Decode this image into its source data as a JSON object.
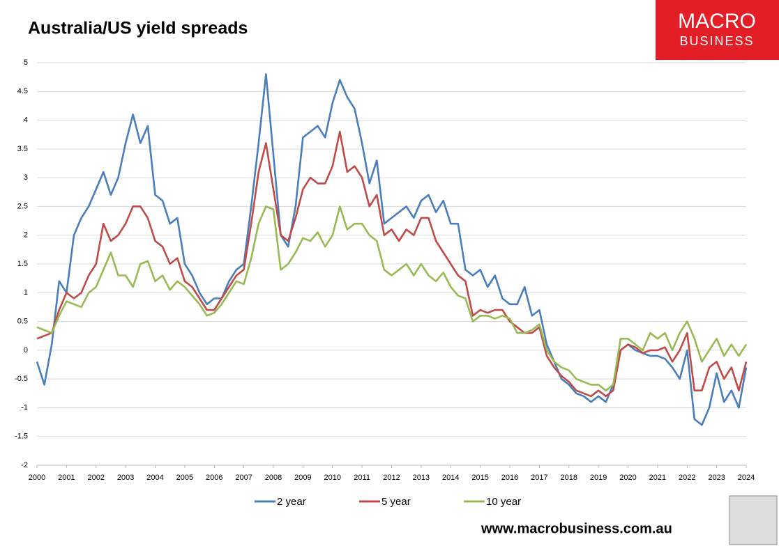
{
  "chart_data": {
    "type": "line",
    "title": "Australia/US yield spreads",
    "x": [
      2000,
      2000.25,
      2000.5,
      2000.75,
      2001,
      2001.25,
      2001.5,
      2001.75,
      2002,
      2002.25,
      2002.5,
      2002.75,
      2003,
      2003.25,
      2003.5,
      2003.75,
      2004,
      2004.25,
      2004.5,
      2004.75,
      2005,
      2005.25,
      2005.5,
      2005.75,
      2006,
      2006.25,
      2006.5,
      2006.75,
      2007,
      2007.25,
      2007.5,
      2007.75,
      2008,
      2008.25,
      2008.5,
      2008.75,
      2009,
      2009.25,
      2009.5,
      2009.75,
      2010,
      2010.25,
      2010.5,
      2010.75,
      2011,
      2011.25,
      2011.5,
      2011.75,
      2012,
      2012.25,
      2012.5,
      2012.75,
      2013,
      2013.25,
      2013.5,
      2013.75,
      2014,
      2014.25,
      2014.5,
      2014.75,
      2015,
      2015.25,
      2015.5,
      2015.75,
      2016,
      2016.25,
      2016.5,
      2016.75,
      2017,
      2017.25,
      2017.5,
      2017.75,
      2018,
      2018.25,
      2018.5,
      2018.75,
      2019,
      2019.25,
      2019.5,
      2019.75,
      2020,
      2020.25,
      2020.5,
      2020.75,
      2021,
      2021.25,
      2021.5,
      2021.75,
      2022,
      2022.25,
      2022.5,
      2022.75,
      2023,
      2023.25,
      2023.5,
      2023.75,
      2024
    ],
    "series": [
      {
        "name": "2 year",
        "color": "#4a7ebb",
        "values": [
          -0.2,
          -0.6,
          0.1,
          1.2,
          1.0,
          2.0,
          2.3,
          2.5,
          2.8,
          3.1,
          2.7,
          3.0,
          3.6,
          4.1,
          3.6,
          3.9,
          2.7,
          2.6,
          2.2,
          2.3,
          1.5,
          1.3,
          1.0,
          0.8,
          0.9,
          0.9,
          1.2,
          1.4,
          1.5,
          2.5,
          3.6,
          4.8,
          3.4,
          2.0,
          1.8,
          2.5,
          3.7,
          3.8,
          3.9,
          3.7,
          4.3,
          4.7,
          4.4,
          4.2,
          3.6,
          2.9,
          3.3,
          2.2,
          2.3,
          2.4,
          2.5,
          2.3,
          2.6,
          2.7,
          2.4,
          2.6,
          2.2,
          2.2,
          1.4,
          1.3,
          1.4,
          1.1,
          1.3,
          0.9,
          0.8,
          0.8,
          1.1,
          0.6,
          0.7,
          0.1,
          -0.2,
          -0.5,
          -0.6,
          -0.75,
          -0.8,
          -0.9,
          -0.8,
          -0.9,
          -0.6,
          0.0,
          0.1,
          0.0,
          -0.05,
          -0.1,
          -0.1,
          -0.15,
          -0.3,
          -0.5,
          0.0,
          -1.2,
          -1.3,
          -1.0,
          -0.4,
          -0.9,
          -0.7,
          -1.0,
          -0.3
        ]
      },
      {
        "name": "5 year",
        "color": "#be4b48",
        "values": [
          0.2,
          0.25,
          0.3,
          0.7,
          1.0,
          0.9,
          1.0,
          1.3,
          1.5,
          2.2,
          1.9,
          2.0,
          2.2,
          2.5,
          2.5,
          2.3,
          1.9,
          1.8,
          1.5,
          1.6,
          1.2,
          1.1,
          0.9,
          0.7,
          0.7,
          0.9,
          1.1,
          1.3,
          1.4,
          2.2,
          3.1,
          3.6,
          2.8,
          2.0,
          1.9,
          2.3,
          2.8,
          3.0,
          2.9,
          2.9,
          3.2,
          3.8,
          3.1,
          3.2,
          3.0,
          2.5,
          2.7,
          2.0,
          2.1,
          1.9,
          2.1,
          2.0,
          2.3,
          2.3,
          1.9,
          1.7,
          1.5,
          1.3,
          1.2,
          0.6,
          0.7,
          0.65,
          0.7,
          0.7,
          0.5,
          0.4,
          0.3,
          0.3,
          0.4,
          -0.1,
          -0.3,
          -0.45,
          -0.55,
          -0.7,
          -0.75,
          -0.8,
          -0.7,
          -0.8,
          -0.7,
          0.0,
          0.1,
          0.05,
          -0.05,
          0.0,
          0.0,
          0.05,
          -0.2,
          0.0,
          0.3,
          -0.7,
          -0.7,
          -0.3,
          -0.2,
          -0.5,
          -0.3,
          -0.7,
          -0.2
        ]
      },
      {
        "name": "10 year",
        "color": "#98b954",
        "values": [
          0.4,
          0.35,
          0.3,
          0.6,
          0.85,
          0.8,
          0.75,
          1.0,
          1.1,
          1.4,
          1.7,
          1.3,
          1.3,
          1.1,
          1.5,
          1.55,
          1.2,
          1.3,
          1.05,
          1.2,
          1.1,
          0.95,
          0.8,
          0.6,
          0.65,
          0.8,
          1.0,
          1.2,
          1.15,
          1.6,
          2.2,
          2.5,
          2.45,
          1.4,
          1.5,
          1.7,
          1.95,
          1.9,
          2.05,
          1.8,
          2.0,
          2.5,
          2.1,
          2.2,
          2.2,
          2.0,
          1.9,
          1.4,
          1.3,
          1.4,
          1.5,
          1.3,
          1.5,
          1.3,
          1.2,
          1.35,
          1.1,
          0.95,
          0.9,
          0.5,
          0.6,
          0.6,
          0.55,
          0.6,
          0.55,
          0.3,
          0.3,
          0.35,
          0.45,
          0.0,
          -0.2,
          -0.3,
          -0.35,
          -0.5,
          -0.55,
          -0.6,
          -0.6,
          -0.7,
          -0.6,
          0.2,
          0.2,
          0.1,
          0.0,
          0.3,
          0.2,
          0.3,
          0.0,
          0.3,
          0.5,
          0.2,
          -0.2,
          0.0,
          0.2,
          -0.1,
          0.1,
          -0.1,
          0.1
        ]
      }
    ],
    "xlim": [
      2000,
      2024
    ],
    "xticks": [
      2000,
      2001,
      2002,
      2003,
      2004,
      2005,
      2006,
      2007,
      2008,
      2009,
      2010,
      2011,
      2012,
      2013,
      2014,
      2015,
      2016,
      2017,
      2018,
      2019,
      2020,
      2021,
      2022,
      2023,
      2024
    ],
    "ylim": [
      -2,
      5
    ],
    "yticks": [
      5,
      4.5,
      4,
      3.5,
      3,
      2.5,
      2,
      1.5,
      1,
      0.5,
      0,
      -0.5,
      -1,
      -1.5,
      -2
    ],
    "grid": true,
    "legend": "bottom"
  },
  "logo": [
    "MACRO",
    "BUSINESS"
  ],
  "footer": "www.macrobusiness.com.au"
}
